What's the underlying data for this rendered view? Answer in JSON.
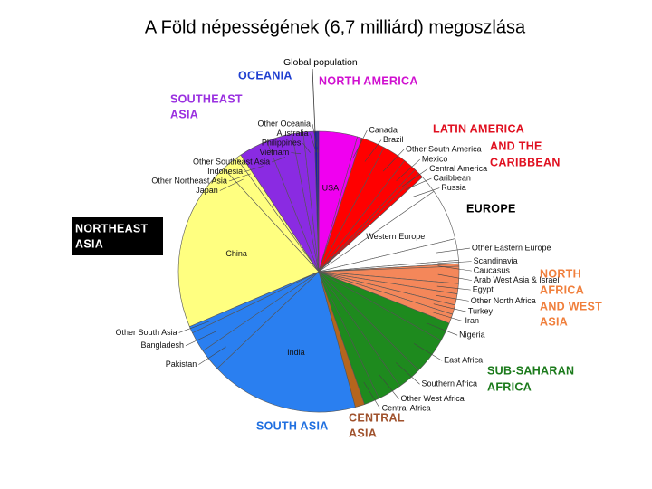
{
  "chart_data": {
    "type": "pie",
    "title": "A Föld népességének (6,7 milliárd) megoszlása",
    "pointer_label": "Global population",
    "categories": [
      "USA",
      "Canada",
      "Brazil",
      "Other South America",
      "Mexico",
      "Central America",
      "Caribbean",
      "Russia",
      "Western Europe",
      "Other Eastern Europe",
      "Scandinavia",
      "Caucasus",
      "Arab West Asia & Israel",
      "Egypt",
      "Other North Africa",
      "Turkey",
      "Iran",
      "Nigeria",
      "East Africa",
      "Southern Africa",
      "Other West Africa",
      "Central Africa",
      null,
      "India",
      "Pakistan",
      "Bangladesh",
      "Other South Asia",
      "China",
      "Japan",
      "Other Northeast Asia",
      "Indonesia",
      "Other Southeast Asia",
      "Vietnam",
      "Philippines",
      "Australia",
      "Other Oceania"
    ],
    "values": [
      4.5,
      0.5,
      2.8,
      2.8,
      1.6,
      0.6,
      0.6,
      2.1,
      6,
      2.5,
      0.4,
      0.3,
      2,
      1.2,
      1.3,
      1.1,
      1.1,
      2.2,
      4.3,
      2.8,
      2.8,
      1.8,
      1.1,
      17.3,
      2.6,
      2.4,
      0.8,
      19.8,
      1.9,
      0.6,
      3.4,
      3,
      1.3,
      1.3,
      0.3,
      0.2
    ],
    "colors": [
      "#f000f0",
      "#f000f0",
      "#ff0000",
      "#ff0000",
      "#ff0000",
      "#ff0000",
      "#ff0000",
      "#ffffff",
      "#ffffff",
      "#ffffff",
      "#ffffff",
      "#f4875a",
      "#f4875a",
      "#f4875a",
      "#f4875a",
      "#f4875a",
      "#f4875a",
      "#1e8a1e",
      "#1e8a1e",
      "#1e8a1e",
      "#1e8a1e",
      "#1e8a1e",
      "#b5651d",
      "#2a7ff0",
      "#2a7ff0",
      "#2a7ff0",
      "#2a7ff0",
      "#ffff80",
      "#ffff80",
      "#ffff80",
      "#8a2be2",
      "#8a2be2",
      "#8a2be2",
      "#8a2be2",
      "#1a1aa8",
      "#1a1aa8"
    ],
    "regions": [
      {
        "lines": [
          "OCEANIA"
        ],
        "color": "#1f3fd0"
      },
      {
        "lines": [
          "NORTH AMERICA"
        ],
        "color": "#d010d0"
      },
      {
        "lines": [
          "SOUTHEAST",
          "ASIA"
        ],
        "color": "#9a30e0"
      },
      {
        "lines": [
          "LATIN AMERICA",
          "AND THE",
          "CARIBBEAN"
        ],
        "color": "#e01020"
      },
      {
        "lines": [
          "EUROPE"
        ],
        "color": "#000000"
      },
      {
        "lines": [
          "NORTHEAST",
          "ASIA"
        ],
        "color": "#ffffff"
      },
      {
        "lines": [
          "NORTH",
          "AFRICA",
          "AND WEST",
          "ASIA"
        ],
        "color": "#f07f3c"
      },
      {
        "lines": [
          "SUB-SAHARAN",
          "AFRICA"
        ],
        "color": "#1b7a1b"
      },
      {
        "lines": [
          "SOUTH ASIA"
        ],
        "color": "#1f6fe0"
      },
      {
        "lines": [
          "CENTRAL",
          "ASIA"
        ],
        "color": "#a0522d"
      }
    ]
  }
}
